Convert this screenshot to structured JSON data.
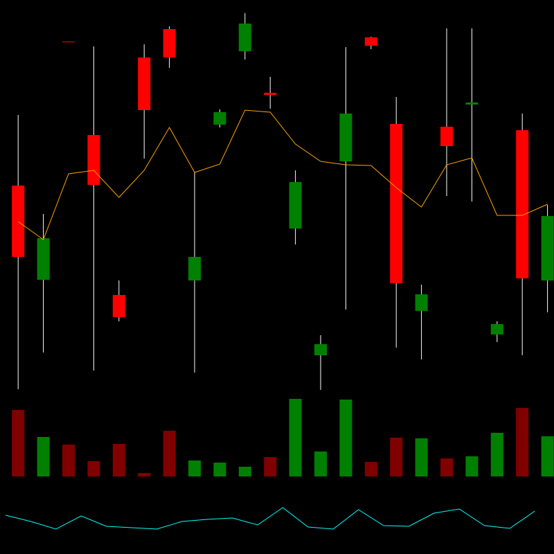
{
  "chart_data": [
    {
      "type": "candlestick",
      "open": [
        532,
        396,
        740,
        605,
        374,
        717,
        758,
        395,
        620,
        726,
        666,
        470,
        287,
        567,
        746,
        621,
        351,
        617,
        649,
        317,
        612,
        395
      ],
      "high": [
        634,
        491,
        740,
        733,
        395,
        736,
        762,
        552,
        642,
        781,
        689,
        554,
        316,
        732,
        747,
        660,
        389,
        759,
        759,
        336,
        636,
        504
      ],
      "low": [
        238,
        291,
        739,
        265,
        336,
        571,
        702,
        262,
        616,
        714,
        643,
        447,
        237,
        353,
        729,
        298,
        281,
        517,
        509,
        306,
        287,
        349
      ],
      "close": [
        429,
        456,
        739,
        533,
        342,
        641,
        717,
        429,
        638,
        766,
        663,
        537,
        303,
        636,
        734,
        391,
        375,
        589,
        652,
        332,
        398,
        488
      ],
      "moving_average": [
        480,
        454,
        549,
        554,
        515,
        554,
        616,
        551,
        563,
        641,
        638,
        592,
        567,
        562,
        561,
        529,
        501,
        562,
        572,
        489,
        489,
        505
      ],
      "up_color": "#008000",
      "down_color": "#ff0000",
      "wick_color": "#ffffff",
      "ma_color": "#ffa500",
      "ylim": [
        0,
        800
      ]
    },
    {
      "type": "bar",
      "values": [
        96,
        57,
        46,
        22,
        47,
        5,
        66,
        23,
        20,
        14,
        28,
        112,
        36,
        111,
        21,
        56,
        55,
        26,
        29,
        63,
        99,
        58
      ],
      "up_color": "#008000",
      "down_color": "#800000",
      "ylim": [
        0,
        120
      ]
    },
    {
      "type": "line",
      "values": [
        56,
        47,
        36,
        55,
        40,
        38,
        36,
        47,
        50,
        52,
        42,
        67,
        39,
        36,
        64,
        41,
        40,
        59,
        65,
        41,
        37,
        62
      ],
      "color": "#00ffff",
      "ylim": [
        0,
        100
      ]
    }
  ]
}
